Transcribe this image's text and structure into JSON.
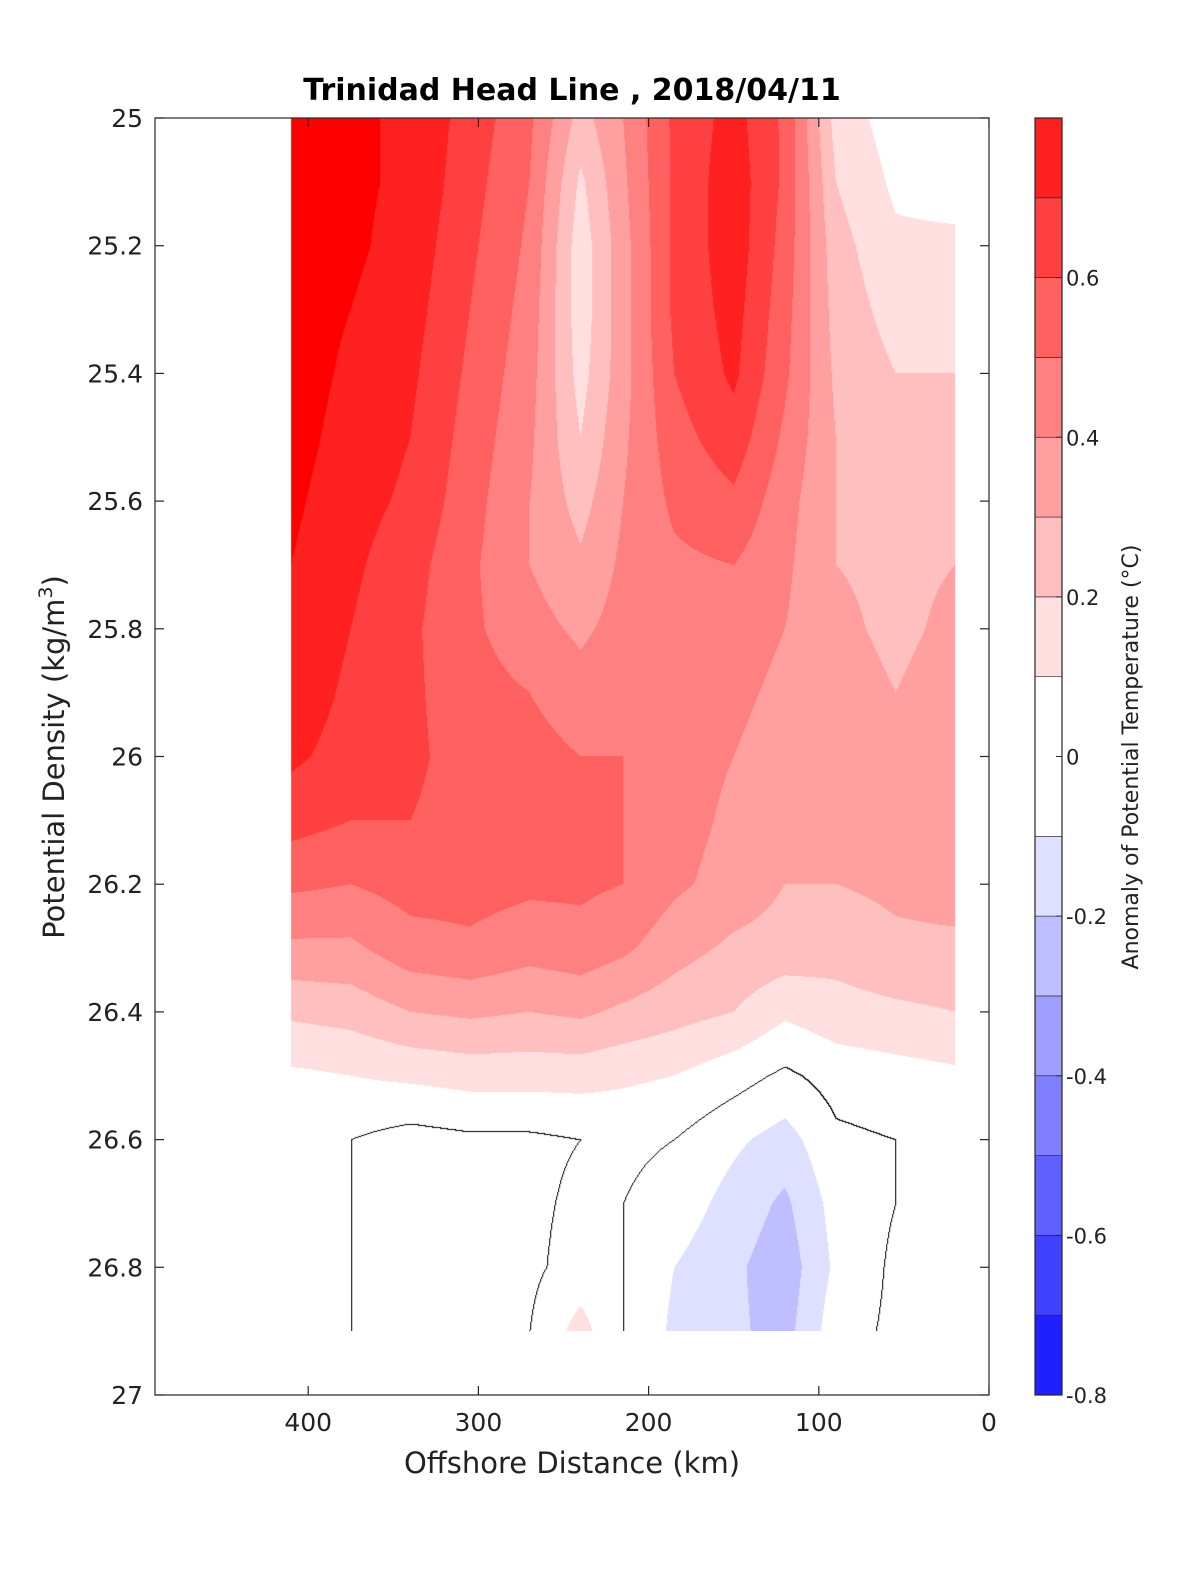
{
  "chart_data": {
    "type": "filled-contour",
    "title": "Trinidad Head Line , 2018/04/11",
    "xlabel": "Offshore Distance (km)",
    "ylabel": "Potential Density (kg/m",
    "ylabel_sup": "3",
    "ylabel_end": ")",
    "colorbar_label": "Anomaly of Potential Temperature (°C)",
    "xlim": [
      490,
      0
    ],
    "ylim": [
      25,
      27
    ],
    "y_reversed": true,
    "x_ticks": [
      400,
      300,
      200,
      100,
      0
    ],
    "y_ticks": [
      25,
      25.2,
      25.4,
      25.6,
      25.8,
      26,
      26.2,
      26.4,
      26.6,
      26.8,
      27
    ],
    "y_tick_labels": [
      "25",
      "25.2",
      "25.4",
      "25.6",
      "25.8",
      "26",
      "26.2",
      "26.4",
      "26.6",
      "26.8",
      "27"
    ],
    "colorbar_ticks": [
      -0.8,
      -0.6,
      -0.4,
      -0.2,
      0,
      0.2,
      0.4,
      0.6
    ],
    "colorbar_tick_labels": [
      "-0.8",
      "-0.6",
      "-0.4",
      "-0.2",
      "0",
      "0.2",
      "0.4",
      "0.6"
    ],
    "contour_levels": [
      -0.8,
      -0.7,
      -0.6,
      -0.5,
      -0.4,
      -0.3,
      -0.2,
      -0.1,
      0.1,
      0.2,
      0.3,
      0.4,
      0.5,
      0.6,
      0.7,
      0.8
    ],
    "level_colors": [
      "#0000ff",
      "#2020ff",
      "#4040ff",
      "#6060ff",
      "#8080ff",
      "#9f9fff",
      "#bfbfff",
      "#dfdfff",
      "#ffffff",
      "#ffdfdf",
      "#ffbfbf",
      "#ff9f9f",
      "#ff8080",
      "#ff6060",
      "#ff4040",
      "#ff2020",
      "#ff0000"
    ],
    "data_extent_x": [
      410,
      20
    ],
    "data_extent_y": [
      25,
      26.9
    ],
    "zero_contour_color": "#000000",
    "anomaly_grid": {
      "x": [
        410,
        375,
        340,
        305,
        270,
        240,
        215,
        185,
        150,
        120,
        90,
        55,
        20
      ],
      "y": [
        25.0,
        25.1,
        25.2,
        25.3,
        25.4,
        25.5,
        25.6,
        25.7,
        25.8,
        25.9,
        26.0,
        26.1,
        26.2,
        26.3,
        26.4,
        26.5,
        26.6,
        26.7,
        26.8,
        26.9
      ],
      "values": [
        [
          0.85,
          0.82,
          0.78,
          0.66,
          0.52,
          0.26,
          0.4,
          0.62,
          0.74,
          0.58,
          0.16,
          0.05,
          0.02
        ],
        [
          0.85,
          0.82,
          0.78,
          0.64,
          0.5,
          0.18,
          0.38,
          0.62,
          0.76,
          0.58,
          0.2,
          0.08,
          0.06
        ],
        [
          0.85,
          0.82,
          0.76,
          0.62,
          0.48,
          0.14,
          0.36,
          0.62,
          0.76,
          0.56,
          0.24,
          0.12,
          0.12
        ],
        [
          0.85,
          0.8,
          0.74,
          0.6,
          0.46,
          0.14,
          0.36,
          0.62,
          0.74,
          0.54,
          0.26,
          0.16,
          0.16
        ],
        [
          0.85,
          0.78,
          0.72,
          0.58,
          0.44,
          0.16,
          0.36,
          0.6,
          0.72,
          0.52,
          0.28,
          0.2,
          0.2
        ],
        [
          0.84,
          0.76,
          0.7,
          0.56,
          0.42,
          0.2,
          0.38,
          0.56,
          0.66,
          0.48,
          0.3,
          0.24,
          0.24
        ],
        [
          0.82,
          0.74,
          0.68,
          0.54,
          0.4,
          0.26,
          0.4,
          0.52,
          0.58,
          0.44,
          0.3,
          0.26,
          0.28
        ],
        [
          0.8,
          0.72,
          0.64,
          0.52,
          0.4,
          0.32,
          0.42,
          0.48,
          0.5,
          0.42,
          0.3,
          0.28,
          0.3
        ],
        [
          0.78,
          0.7,
          0.62,
          0.52,
          0.44,
          0.38,
          0.44,
          0.46,
          0.44,
          0.4,
          0.32,
          0.28,
          0.32
        ],
        [
          0.76,
          0.68,
          0.62,
          0.54,
          0.5,
          0.44,
          0.48,
          0.44,
          0.42,
          0.38,
          0.34,
          0.3,
          0.34
        ],
        [
          0.72,
          0.66,
          0.62,
          0.56,
          0.54,
          0.5,
          0.5,
          0.44,
          0.4,
          0.36,
          0.34,
          0.3,
          0.34
        ],
        [
          0.64,
          0.6,
          0.6,
          0.56,
          0.54,
          0.52,
          0.5,
          0.44,
          0.38,
          0.34,
          0.32,
          0.3,
          0.34
        ],
        [
          0.52,
          0.5,
          0.54,
          0.54,
          0.52,
          0.52,
          0.5,
          0.42,
          0.36,
          0.3,
          0.3,
          0.32,
          0.34
        ],
        [
          0.38,
          0.38,
          0.46,
          0.48,
          0.44,
          0.46,
          0.42,
          0.34,
          0.28,
          0.26,
          0.24,
          0.28,
          0.28
        ],
        [
          0.22,
          0.24,
          0.3,
          0.32,
          0.3,
          0.32,
          0.28,
          0.24,
          0.2,
          0.12,
          0.16,
          0.18,
          0.2
        ],
        [
          0.08,
          0.1,
          0.12,
          0.14,
          0.14,
          0.14,
          0.12,
          0.1,
          0.04,
          -0.02,
          0.04,
          0.06,
          0.08
        ],
        [
          0.02,
          0.0,
          -0.04,
          -0.02,
          -0.02,
          0.0,
          0.02,
          0.0,
          -0.08,
          -0.14,
          -0.02,
          0.0,
          0.0
        ],
        [
          0.02,
          0.0,
          -0.06,
          -0.04,
          -0.02,
          0.02,
          0.0,
          -0.04,
          -0.14,
          -0.22,
          -0.06,
          0.0,
          0.0
        ],
        [
          0.02,
          0.0,
          -0.02,
          -0.04,
          -0.02,
          0.04,
          0.0,
          -0.1,
          -0.18,
          -0.26,
          -0.08,
          0.02,
          0.0
        ],
        [
          0.02,
          0.0,
          0.0,
          -0.02,
          0.0,
          0.14,
          0.0,
          -0.12,
          -0.18,
          -0.24,
          -0.04,
          0.02,
          0.0
        ]
      ]
    }
  }
}
